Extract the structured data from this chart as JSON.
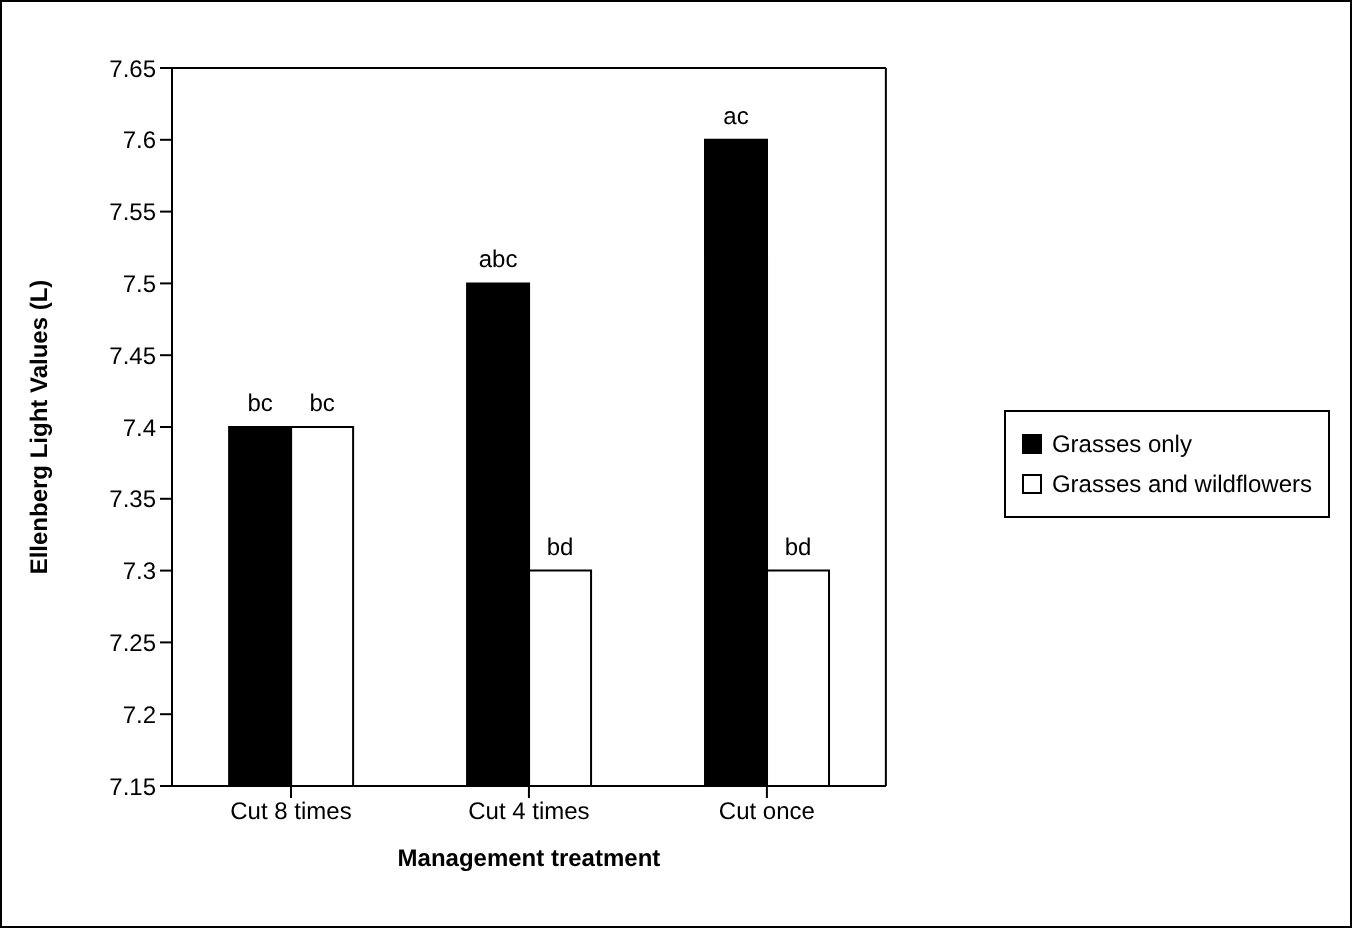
{
  "chart_data": {
    "type": "bar",
    "xlabel": "Management treatment",
    "ylabel": "Ellenberg Light Values (L)",
    "categories": [
      "Cut 8 times",
      "Cut 4 times",
      "Cut once"
    ],
    "series": [
      {
        "name": "Grasses only",
        "color": "#000000",
        "values": [
          7.4,
          7.5,
          7.6
        ],
        "value_labels": [
          "bc",
          "abc",
          "ac"
        ]
      },
      {
        "name": "Grasses and wildflowers",
        "color": "#ffffff",
        "values": [
          7.4,
          7.3,
          7.3
        ],
        "value_labels": [
          "bc",
          "bd",
          "bd"
        ]
      }
    ],
    "ylim": [
      7.15,
      7.65
    ],
    "yticks": [
      7.15,
      7.2,
      7.25,
      7.3,
      7.35,
      7.4,
      7.45,
      7.5,
      7.55,
      7.6,
      7.65
    ],
    "grid": false,
    "legend": "right"
  }
}
